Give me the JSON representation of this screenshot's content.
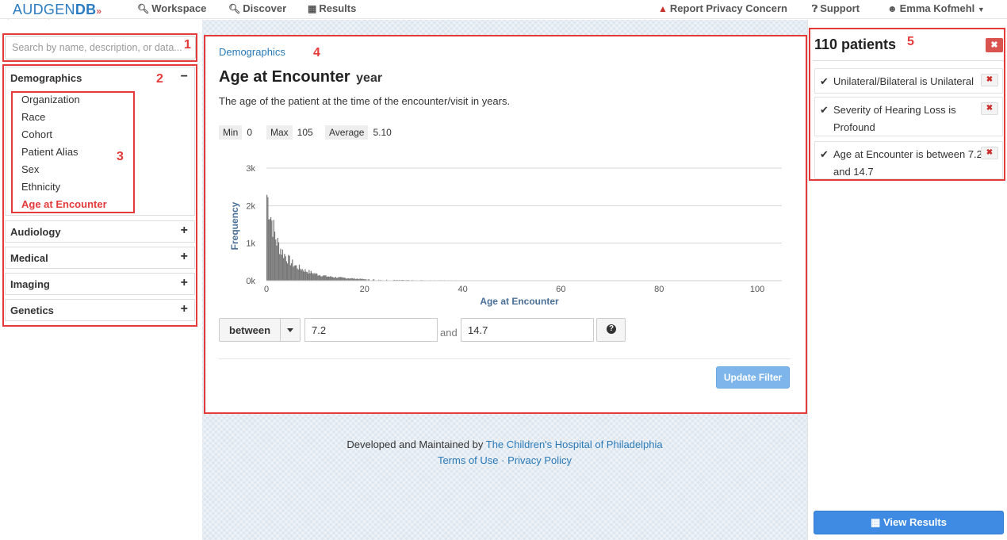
{
  "nav": {
    "logo_text": "AUDGEN",
    "logo_bold": "DB",
    "logo_wave": "»",
    "workspace": "Workspace",
    "discover": "Discover",
    "results": "Results",
    "report": "Report Privacy Concern",
    "support": "Support",
    "user": "Emma Kofmehl"
  },
  "search": {
    "placeholder": "Search by name, description, or data..."
  },
  "annotations": [
    "1",
    "2",
    "3",
    "4",
    "5"
  ],
  "sidebar": {
    "sections": [
      {
        "label": "Demographics",
        "toggle": "−"
      },
      {
        "label": "Audiology",
        "toggle": "+"
      },
      {
        "label": "Medical",
        "toggle": "+"
      },
      {
        "label": "Imaging",
        "toggle": "+"
      },
      {
        "label": "Genetics",
        "toggle": "+"
      }
    ],
    "items": [
      "Organization",
      "Race",
      "Cohort",
      "Patient Alias",
      "Sex",
      "Ethnicity",
      "Age at Encounter"
    ]
  },
  "main": {
    "breadcrumb": "Demographics",
    "title": "Age at Encounter",
    "unit": "year",
    "description": "The age of the patient at the time of the encounter/visit in years.",
    "stats": {
      "min_label": "Min",
      "min_value": "0",
      "max_label": "Max",
      "max_value": "105",
      "avg_label": "Average",
      "avg_value": "5.10"
    },
    "operator": "between",
    "value_from": "7.2",
    "and_label": "and",
    "value_to": "14.7",
    "update_label": "Update Filter"
  },
  "chart_data": {
    "type": "bar",
    "title": "",
    "xlabel": "Age at Encounter",
    "ylabel": "Frequency",
    "xlim": [
      0,
      105
    ],
    "ylim": [
      0,
      3000
    ],
    "x_ticks": [
      "0",
      "20",
      "40",
      "60",
      "80",
      "100"
    ],
    "y_ticks": [
      "0k",
      "1k",
      "2k",
      "3k"
    ],
    "grid": true,
    "x": [
      0,
      0.5,
      1,
      1.5,
      2,
      3,
      4,
      5,
      6,
      8,
      10,
      12,
      15,
      20,
      25,
      30,
      40,
      50,
      60,
      70,
      80,
      90,
      100
    ],
    "values": [
      2300,
      1950,
      1600,
      1300,
      1050,
      800,
      620,
      480,
      380,
      260,
      180,
      120,
      80,
      40,
      20,
      15,
      10,
      8,
      6,
      5,
      4,
      3,
      2
    ],
    "bar_color": "#777777"
  },
  "footer": {
    "developed": "Developed and Maintained by",
    "chop": "The Children's Hospital of Philadelphia",
    "terms": "Terms of Use",
    "dot": "·",
    "privacy": "Privacy Policy"
  },
  "right": {
    "patients": "110 patients",
    "close": "✖",
    "filters": [
      {
        "text": "Unilateral/Bilateral is Unilateral"
      },
      {
        "text": "Severity of Hearing Loss is Profound"
      },
      {
        "text": "Age at Encounter is between 7.2 and 14.7"
      }
    ],
    "filter_close": "✖",
    "view_results": "View Results"
  }
}
